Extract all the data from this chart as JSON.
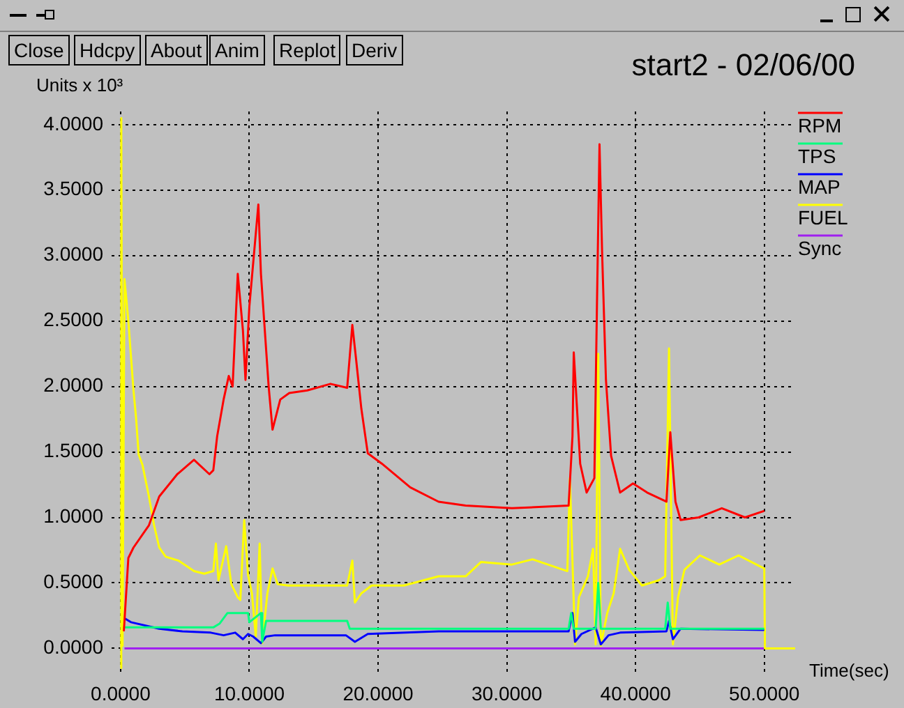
{
  "chart_data": {
    "type": "line",
    "title": "start2 - 02/06/00",
    "ylabel": "Units x 10³",
    "xlabel": "Time(sec)",
    "annotations": [
      "Close",
      "Hdcpy",
      "About",
      "Anim",
      "Replot",
      "Deriv"
    ],
    "xlim": [
      -0.7,
      52.4
    ],
    "ylim": [
      -0.2,
      4.1
    ],
    "xticks": [
      {
        "value": 0,
        "label": "0.0000"
      },
      {
        "value": 10,
        "label": "10.0000"
      },
      {
        "value": 20,
        "label": "20.0000"
      },
      {
        "value": 30,
        "label": "30.0000"
      },
      {
        "value": 40,
        "label": "40.0000"
      },
      {
        "value": 50,
        "label": "50.0000"
      }
    ],
    "yticks": [
      {
        "value": 0,
        "label": "0.0000"
      },
      {
        "value": 0.5,
        "label": "0.5000"
      },
      {
        "value": 1,
        "label": "1.0000"
      },
      {
        "value": 1.5,
        "label": "1.5000"
      },
      {
        "value": 2,
        "label": "2.0000"
      },
      {
        "value": 2.5,
        "label": "2.5000"
      },
      {
        "value": 3,
        "label": "3.0000"
      },
      {
        "value": 3.5,
        "label": "3.5000"
      },
      {
        "value": 4,
        "label": "4.0000"
      }
    ],
    "grid": true,
    "legend": "right",
    "line_style": "solid",
    "series": [
      {
        "name": "RPM",
        "color": "#ff0000",
        "x": [
          0.25,
          0.6,
          1.0,
          2.2,
          3.0,
          4.4,
          5.7,
          6.9,
          7.2,
          7.5,
          8.0,
          8.4,
          8.7,
          9.1,
          9.5,
          9.7,
          10.0,
          10.7,
          10.9,
          11.5,
          11.8,
          12.4,
          13.1,
          14.5,
          16.3,
          17.6,
          18.0,
          18.3,
          18.7,
          19.2,
          20.3,
          22.5,
          24.7,
          26.8,
          30.4,
          34.8,
          35.1,
          35.2,
          35.7,
          36.2,
          36.8,
          37.0,
          37.2,
          37.4,
          37.7,
          38.1,
          38.8,
          39.8,
          40.9,
          42.4,
          42.7,
          43.1,
          43.5,
          44.9,
          46.7,
          48.5,
          50.0
        ],
        "values": [
          0.13,
          0.69,
          0.77,
          0.94,
          1.16,
          1.33,
          1.44,
          1.33,
          1.36,
          1.62,
          1.9,
          2.08,
          2.0,
          2.86,
          2.43,
          2.05,
          2.61,
          3.39,
          2.86,
          2.0,
          1.67,
          1.9,
          1.95,
          1.97,
          2.02,
          1.99,
          2.47,
          2.2,
          1.83,
          1.49,
          1.41,
          1.23,
          1.12,
          1.09,
          1.07,
          1.09,
          1.62,
          2.26,
          1.41,
          1.19,
          1.3,
          2.61,
          3.85,
          3.03,
          2.05,
          1.47,
          1.19,
          1.26,
          1.19,
          1.12,
          1.65,
          1.12,
          0.98,
          1.0,
          1.07,
          1.0,
          1.05
        ]
      },
      {
        "name": "TPS",
        "color": "#00ff7f",
        "x": [
          0.3,
          7.2,
          7.7,
          8.3,
          9.9,
          10.0,
          10.9,
          11.0,
          11.3,
          17.6,
          17.8,
          34.8,
          35.0,
          35.2,
          36.9,
          37.1,
          37.3,
          42.3,
          42.5,
          42.7,
          50.0
        ],
        "values": [
          0.16,
          0.16,
          0.19,
          0.27,
          0.27,
          0.2,
          0.27,
          0.05,
          0.21,
          0.21,
          0.15,
          0.15,
          0.27,
          0.15,
          0.15,
          0.5,
          0.15,
          0.15,
          0.35,
          0.15,
          0.15
        ]
      },
      {
        "name": "MAP",
        "color": "#0000ff",
        "x": [
          0.3,
          0.8,
          3.0,
          4.8,
          7.0,
          8.0,
          8.9,
          9.5,
          9.9,
          10.3,
          10.9,
          11.3,
          12.0,
          17.5,
          18.2,
          19.2,
          24.7,
          34.8,
          35.1,
          35.3,
          35.8,
          36.9,
          37.3,
          37.9,
          38.8,
          42.4,
          42.6,
          42.9,
          43.5,
          50.0
        ],
        "values": [
          0.23,
          0.2,
          0.15,
          0.13,
          0.12,
          0.1,
          0.12,
          0.07,
          0.11,
          0.09,
          0.04,
          0.09,
          0.1,
          0.1,
          0.05,
          0.11,
          0.13,
          0.13,
          0.27,
          0.05,
          0.11,
          0.16,
          0.03,
          0.1,
          0.12,
          0.13,
          0.21,
          0.07,
          0.15,
          0.14
        ]
      },
      {
        "name": "FUEL",
        "color": "#ffff00",
        "x": [
          0.0,
          0.05,
          0.15,
          0.3,
          0.6,
          1.0,
          1.2,
          1.4,
          1.7,
          2.2,
          2.6,
          3.0,
          3.5,
          4.5,
          5.7,
          6.5,
          7.2,
          7.4,
          7.6,
          8.2,
          8.6,
          9.1,
          9.3,
          9.6,
          9.9,
          10.2,
          10.5,
          10.8,
          11.0,
          11.4,
          11.8,
          12.2,
          13.0,
          17.6,
          18.0,
          18.2,
          18.7,
          19.5,
          22.0,
          24.7,
          26.8,
          28.0,
          30.4,
          32.0,
          34.7,
          34.9,
          35.3,
          35.6,
          36.3,
          36.7,
          36.9,
          37.1,
          37.3,
          37.8,
          38.3,
          38.8,
          39.5,
          40.5,
          41.8,
          42.3,
          42.6,
          42.9,
          43.3,
          43.8,
          45.0,
          46.5,
          48.0,
          50.0,
          50.05,
          52.4
        ],
        "values": [
          -0.15,
          4.05,
          0.02,
          2.82,
          2.5,
          1.97,
          1.76,
          1.48,
          1.4,
          1.16,
          0.94,
          0.77,
          0.7,
          0.67,
          0.59,
          0.57,
          0.59,
          0.8,
          0.52,
          0.78,
          0.49,
          0.39,
          0.37,
          0.98,
          0.56,
          0.42,
          0.09,
          0.8,
          0.04,
          0.42,
          0.61,
          0.49,
          0.48,
          0.48,
          0.67,
          0.35,
          0.42,
          0.48,
          0.48,
          0.55,
          0.55,
          0.66,
          0.64,
          0.68,
          0.59,
          1.3,
          0.03,
          0.39,
          0.55,
          0.76,
          0.03,
          2.25,
          0.02,
          0.27,
          0.42,
          0.76,
          0.6,
          0.48,
          0.52,
          0.55,
          2.29,
          0.03,
          0.39,
          0.6,
          0.71,
          0.64,
          0.71,
          0.61,
          0.0,
          0.0
        ]
      },
      {
        "name": "Sync",
        "color": "#a020f0",
        "x": [
          0.3,
          50.0
        ],
        "values": [
          0.0,
          0.0
        ]
      }
    ]
  }
}
